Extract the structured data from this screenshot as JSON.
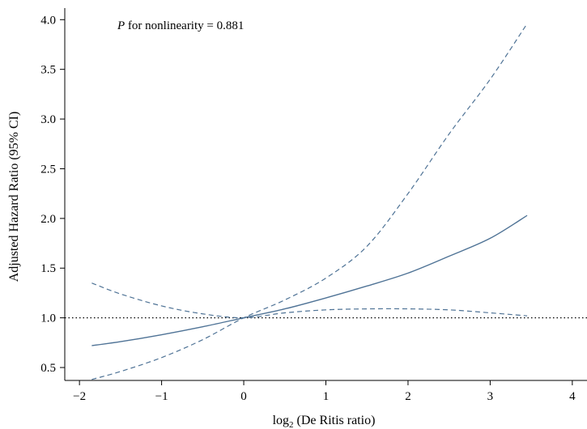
{
  "chart_data": {
    "type": "line",
    "title": "",
    "xlabel": "log",
    "xlabel_sub": "2",
    "xlabel_rest": " (De Ritis ratio)",
    "ylabel": "Adjusted Hazard Ratio (95% CI)",
    "annotation_italic": "P",
    "annotation_text": " for nonlinearity = 0.881",
    "xlim": [
      -2.1,
      4.1
    ],
    "ylim": [
      0.37,
      4.1
    ],
    "x_ticks": [
      -2,
      -1,
      0,
      1,
      2,
      3,
      4
    ],
    "x_tick_labels": [
      "−2",
      "−1",
      "0",
      "1",
      "2",
      "3",
      "4"
    ],
    "y_ticks": [
      0.5,
      1.0,
      1.5,
      2.0,
      2.5,
      3.0,
      3.5,
      4.0
    ],
    "y_tick_labels": [
      "0.5",
      "1.0",
      "1.5",
      "2.0",
      "2.5",
      "3.0",
      "3.5",
      "4.0"
    ],
    "reference_line": 1.0,
    "line_color": "#4f7396",
    "series": [
      {
        "style": "solid",
        "x": [
          -1.85,
          -1.5,
          -1.0,
          -0.5,
          0.0,
          0.5,
          1.0,
          1.5,
          2.0,
          2.5,
          3.0,
          3.45
        ],
        "y": [
          0.72,
          0.76,
          0.83,
          0.91,
          1.0,
          1.09,
          1.2,
          1.32,
          1.45,
          1.62,
          1.8,
          2.03
        ]
      },
      {
        "style": "dashed",
        "x": [
          -1.85,
          -1.5,
          -1.0,
          -0.5,
          0.0,
          0.5,
          1.0,
          1.5,
          2.0,
          2.5,
          3.0,
          3.45
        ],
        "y": [
          0.38,
          0.46,
          0.6,
          0.78,
          1.0,
          1.18,
          1.4,
          1.72,
          2.25,
          2.85,
          3.4,
          3.96
        ]
      },
      {
        "style": "dashed",
        "x": [
          -1.85,
          -1.5,
          -1.0,
          -0.5,
          0.0,
          0.5,
          1.0,
          1.5,
          2.0,
          2.5,
          3.0,
          3.45
        ],
        "y": [
          1.35,
          1.24,
          1.12,
          1.04,
          1.0,
          1.05,
          1.08,
          1.09,
          1.09,
          1.08,
          1.05,
          1.02
        ]
      }
    ]
  }
}
